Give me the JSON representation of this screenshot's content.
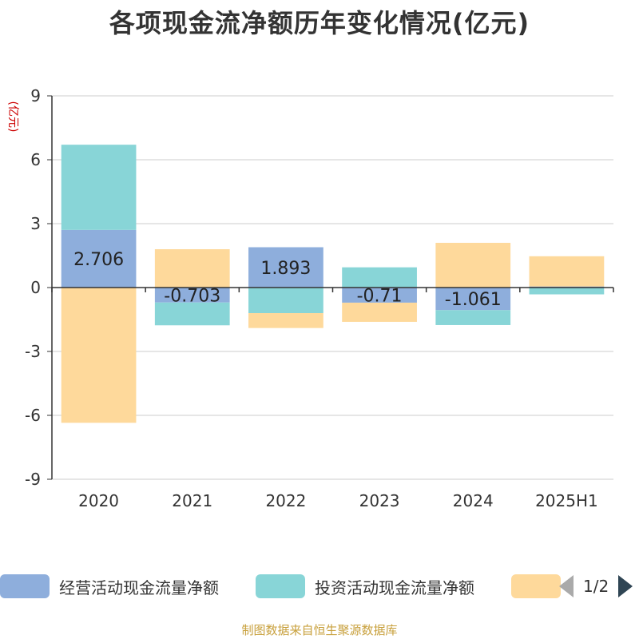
{
  "chart_data": {
    "type": "bar",
    "stacked": true,
    "title": "各项现金流净额历年变化情况(亿元)",
    "ylabel": "(亿元)",
    "categories": [
      "2020",
      "2021",
      "2022",
      "2023",
      "2024",
      "2025H1"
    ],
    "ylim": [
      -9,
      9
    ],
    "yticks": [
      9,
      6,
      3,
      0,
      -3,
      -6,
      -9
    ],
    "ytick_labels": [
      "9",
      "6",
      "3",
      "0",
      "-3",
      "-6",
      "-9"
    ],
    "grid": true,
    "series": [
      {
        "name": "经营活动现金流量净额",
        "color": "#8eaedc",
        "values": [
          2.706,
          -0.703,
          1.893,
          -0.71,
          -1.061,
          0.05
        ],
        "labels": [
          "2.706",
          "-0.703",
          "1.893",
          "-0.71",
          "-1.061",
          ""
        ]
      },
      {
        "name": "投资活动现金流量净额",
        "color": "#88d5d7",
        "values": [
          4.0,
          -1.07,
          -1.2,
          0.95,
          -0.7,
          -0.32
        ],
        "labels": [
          "",
          "",
          "",
          "",
          "",
          ""
        ]
      },
      {
        "name": "",
        "color": "#fed99b",
        "values": [
          -6.35,
          1.8,
          -0.7,
          -0.9,
          2.1,
          1.42
        ],
        "labels": [
          "",
          "",
          "",
          "",
          "",
          ""
        ]
      }
    ],
    "legend": {
      "position": "bottom",
      "page_text": "1/2"
    }
  },
  "source_note": "制图数据来自恒生聚源数据库"
}
